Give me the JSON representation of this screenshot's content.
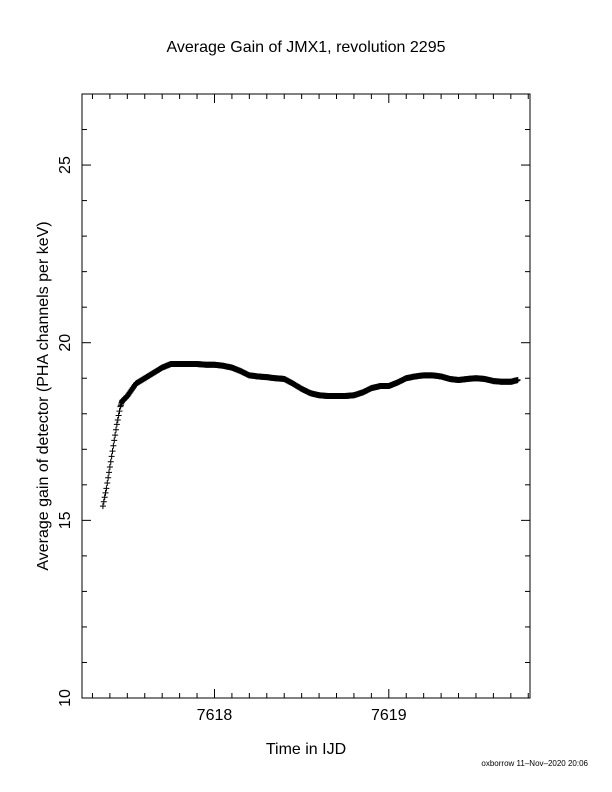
{
  "chart_data": {
    "type": "scatter",
    "title": "Average Gain of JMX1, revolution 2295",
    "xlabel": "Time in IJD",
    "ylabel": "Average gain of detector (PHA channels per keV)",
    "xlim": [
      7617.24,
      7619.81
    ],
    "ylim": [
      10,
      27
    ],
    "x_ticks": [
      7618,
      7619
    ],
    "x_tick_labels": [
      "7618",
      "7619"
    ],
    "y_ticks": [
      10,
      15,
      20,
      25
    ],
    "y_tick_labels": [
      "10",
      "15",
      "20",
      "25"
    ],
    "grid": false,
    "legend": "none",
    "marker": "plus",
    "color": "#000000",
    "series": [
      {
        "x": [
          7617.36,
          7617.38,
          7617.4,
          7617.42,
          7617.44,
          7617.46,
          7617.47,
          7617.5,
          7617.55,
          7617.6,
          7617.65,
          7617.7,
          7617.75,
          7617.8,
          7617.85,
          7617.9,
          7617.95,
          7618.0,
          7618.05,
          7618.1,
          7618.15,
          7618.2,
          7618.25,
          7618.3,
          7618.35,
          7618.4,
          7618.45,
          7618.5,
          7618.55,
          7618.6,
          7618.65,
          7618.7,
          7618.75,
          7618.8,
          7618.85,
          7618.9,
          7618.95,
          7619.0,
          7619.05,
          7619.1,
          7619.15,
          7619.2,
          7619.25,
          7619.3,
          7619.35,
          7619.4,
          7619.45,
          7619.5,
          7619.55,
          7619.6,
          7619.65,
          7619.7,
          7619.74
        ],
        "y": [
          15.4,
          15.9,
          16.5,
          17.1,
          17.7,
          18.2,
          18.35,
          18.5,
          18.85,
          19.0,
          19.15,
          19.3,
          19.4,
          19.4,
          19.4,
          19.4,
          19.38,
          19.38,
          19.35,
          19.3,
          19.2,
          19.08,
          19.05,
          19.03,
          19.0,
          18.98,
          18.85,
          18.7,
          18.58,
          18.52,
          18.5,
          18.5,
          18.5,
          18.52,
          18.6,
          18.72,
          18.78,
          18.78,
          18.88,
          19.0,
          19.05,
          19.08,
          19.08,
          19.05,
          18.98,
          18.95,
          18.98,
          19.0,
          18.98,
          18.92,
          18.9,
          18.9,
          18.95
        ]
      }
    ]
  },
  "footer": {
    "text": "oxborrow 11–Nov–2020 20:06"
  }
}
